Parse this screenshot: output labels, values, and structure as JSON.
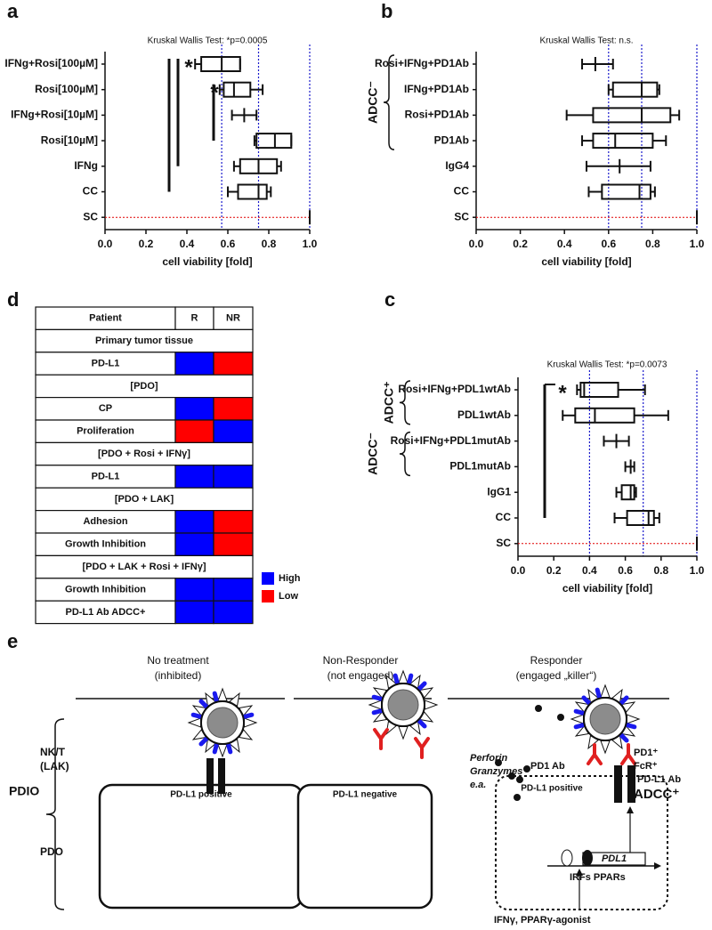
{
  "chart_data": [
    {
      "type": "box",
      "panel": "a",
      "title": "Kruskal Wallis Test: *p=0.0005",
      "xlabel": "cell viability [fold]",
      "categories": [
        "IFNg+Rosi[100µM]",
        "Rosi[100µM]",
        "IFNg+Rosi[10µM]",
        "Rosi[10µM]",
        "IFNg",
        "CC",
        "SC"
      ],
      "values": [
        {
          "min": 0.44,
          "q1": 0.47,
          "median": 0.57,
          "q3": 0.66,
          "max": 0.66
        },
        {
          "min": 0.56,
          "q1": 0.58,
          "median": 0.63,
          "q3": 0.71,
          "max": 0.77
        },
        {
          "min": 0.62,
          "q1": 0.68,
          "median": 0.68,
          "q3": 0.68,
          "max": 0.74
        },
        {
          "min": 0.73,
          "q1": 0.74,
          "median": 0.83,
          "q3": 0.91,
          "max": 0.91
        },
        {
          "min": 0.63,
          "q1": 0.66,
          "median": 0.75,
          "q3": 0.84,
          "max": 0.86
        },
        {
          "min": 0.6,
          "q1": 0.65,
          "median": 0.75,
          "q3": 0.79,
          "max": 0.81
        },
        {
          "min": 1,
          "q1": 1,
          "median": 1,
          "q3": 1,
          "max": 1
        }
      ],
      "annotations": [
        "*",
        "*"
      ],
      "xlim": [
        0,
        1
      ],
      "xticks": [
        {
          "value": 0,
          "label": "0.0"
        },
        0.2,
        0.4,
        0.6,
        0.8,
        {
          "value": 1,
          "label": "1.0"
        }
      ],
      "ref_lines": [
        0.57,
        0.75,
        1
      ],
      "ref_color": "#1a1acc",
      "baseline_color": "#e00000"
    },
    {
      "type": "box",
      "panel": "b",
      "title": "Kruskal Wallis Test: n.s.",
      "xlabel": "cell viability [fold]",
      "categories": [
        "Rosi+IFNg+PD1Ab",
        "IFNg+PD1Ab",
        "Rosi+PD1Ab",
        "PD1Ab",
        "IgG4",
        "CC",
        "SC"
      ],
      "values": [
        {
          "min": 0.48,
          "q1": 0.54,
          "median": 0.54,
          "q3": 0.54,
          "max": 0.62
        },
        {
          "min": 0.6,
          "q1": 0.62,
          "median": 0.75,
          "q3": 0.82,
          "max": 0.83
        },
        {
          "min": 0.41,
          "q1": 0.53,
          "median": 0.75,
          "q3": 0.88,
          "max": 0.92
        },
        {
          "min": 0.48,
          "q1": 0.53,
          "median": 0.63,
          "q3": 0.8,
          "max": 0.86
        },
        {
          "min": 0.5,
          "q1": 0.65,
          "median": 0.65,
          "q3": 0.65,
          "max": 0.79
        },
        {
          "min": 0.51,
          "q1": 0.57,
          "median": 0.74,
          "q3": 0.79,
          "max": 0.81
        },
        {
          "min": 1,
          "q1": 1,
          "median": 1,
          "q3": 1,
          "max": 1
        }
      ],
      "groups": [
        {
          "label": "ADCC⁻",
          "color": "#e02020"
        }
      ],
      "xlim": [
        0,
        1
      ],
      "xticks": [
        {
          "value": 0,
          "label": "0.0"
        },
        0.2,
        0.4,
        0.6,
        0.8,
        {
          "value": 1,
          "label": "1.0"
        }
      ],
      "ref_lines": [
        0.6,
        0.75,
        1
      ],
      "ref_color": "#1a1acc",
      "baseline_color": "#e00000"
    },
    {
      "type": "box",
      "panel": "c",
      "title": "Kruskal Wallis Test: *p=0.0073",
      "xlabel": "cell viability [fold]",
      "categories": [
        "Rosi+IFNg+PDL1wtAb",
        "PDL1wtAb",
        "Rosi+IFNg+PDL1mutAb",
        "PDL1mutAb",
        "IgG1",
        "CC",
        "SC"
      ],
      "values": [
        {
          "min": 0.33,
          "q1": 0.35,
          "median": 0.37,
          "q3": 0.56,
          "max": 0.71
        },
        {
          "min": 0.25,
          "q1": 0.32,
          "median": 0.43,
          "q3": 0.65,
          "max": 0.84
        },
        {
          "min": 0.48,
          "q1": 0.55,
          "median": 0.55,
          "q3": 0.55,
          "max": 0.62
        },
        {
          "min": 0.6,
          "q1": 0.63,
          "median": 0.63,
          "q3": 0.63,
          "max": 0.65
        },
        {
          "min": 0.55,
          "q1": 0.58,
          "median": 0.63,
          "q3": 0.65,
          "max": 0.66
        },
        {
          "min": 0.54,
          "q1": 0.61,
          "median": 0.73,
          "q3": 0.76,
          "max": 0.79
        },
        {
          "min": 1,
          "q1": 1,
          "median": 1,
          "q3": 1,
          "max": 1
        }
      ],
      "annotations": [
        "*"
      ],
      "groups": [
        {
          "label": "ADCC⁺",
          "color": "#1a1aee"
        },
        {
          "label": "ADCC⁻",
          "color": "#e02020"
        }
      ],
      "xlim": [
        0,
        1
      ],
      "xticks": [
        {
          "value": 0,
          "label": "0.0"
        },
        0.2,
        0.4,
        0.6,
        0.8,
        {
          "value": 1,
          "label": "1.0"
        }
      ],
      "ref_lines": [
        0.4,
        0.7,
        1
      ],
      "ref_color": "#1a1acc",
      "baseline_color": "#e00000"
    }
  ],
  "table": {
    "panel": "d",
    "header": [
      "Patient",
      "R",
      "NR"
    ],
    "rows": [
      {
        "section": "Primary tumor tissue"
      },
      {
        "label": "PD-L1",
        "cells": [
          "High",
          "Low"
        ]
      },
      {
        "section": "[PDO]"
      },
      {
        "label": "CP",
        "cells": [
          "High",
          "Low"
        ]
      },
      {
        "label": "Proliferation",
        "cells": [
          "Low",
          "High"
        ]
      },
      {
        "section": "[PDO + Rosi + IFNγ]"
      },
      {
        "label": "PD-L1",
        "cells": [
          "High",
          "High"
        ]
      },
      {
        "section": "[PDO + LAK]"
      },
      {
        "label": "Adhesion",
        "cells": [
          "High",
          "Low"
        ]
      },
      {
        "label": "Growth Inhibition",
        "cells": [
          "High",
          "Low"
        ]
      },
      {
        "section": "[PDO + LAK + Rosi + IFNγ]"
      },
      {
        "label": "Growth Inhibition",
        "cells": [
          "High",
          "High"
        ]
      },
      {
        "label": "PD-L1 Ab ADCC+",
        "cells": [
          "High",
          "High"
        ]
      }
    ],
    "legend": [
      {
        "label": "High",
        "color": "#0000ff"
      },
      {
        "label": "Low",
        "color": "#ff0000"
      }
    ]
  },
  "diagram": {
    "panel": "e",
    "columns": [
      {
        "title": "No treatment",
        "subtitle": "(inhibited)"
      },
      {
        "title": "Non-Responder",
        "subtitle": "(not engaged)"
      },
      {
        "title": "Responder",
        "subtitle": "(engaged „killer“)"
      }
    ],
    "labels": {
      "effector": "NK/T",
      "effector_sub": "(LAK)",
      "system": "PDIO",
      "organoid": "PDO"
    },
    "cells": [
      "PD-L1 positive",
      "PD-L1 negative",
      "PD-L1 positive"
    ],
    "responder": {
      "effector_markers": [
        "PD1⁺",
        "FcR⁺"
      ],
      "cytotoxins": [
        "Perforin",
        "Granzymes",
        "e.a."
      ],
      "antibodies": [
        "PD1 Ab",
        "PD-L1 Ab"
      ],
      "adcc": "ADCC⁺",
      "factors": "IRFs PPARs",
      "gene": "PDL1",
      "stimulus": "IFNγ, PPARγ-agonist"
    }
  }
}
